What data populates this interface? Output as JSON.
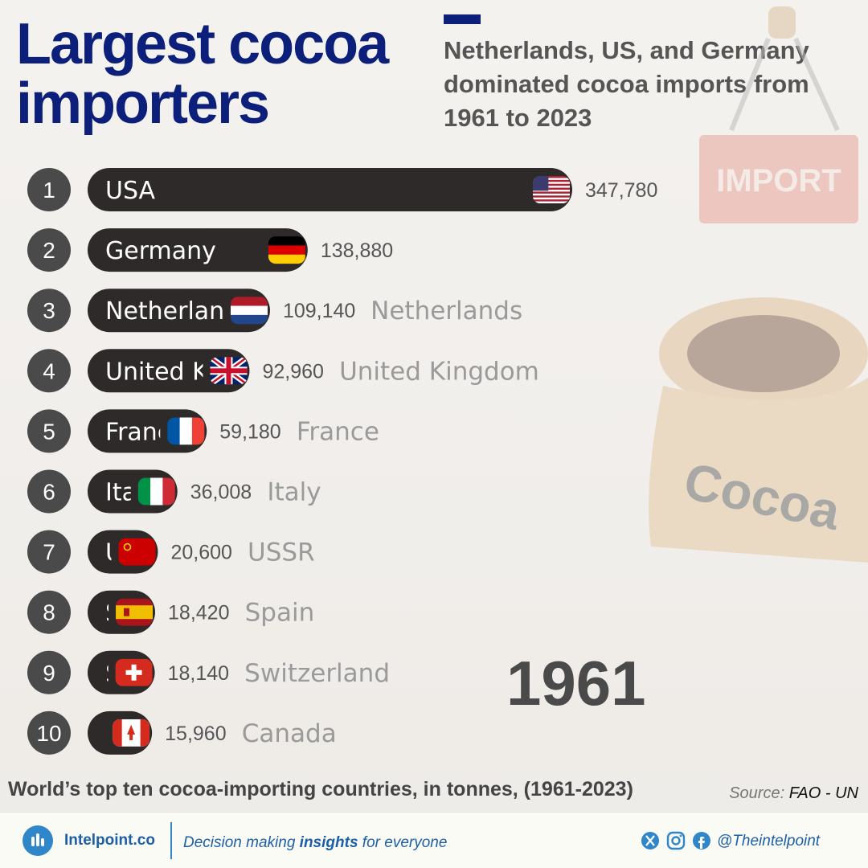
{
  "header": {
    "title": "Largest cocoa importers",
    "subtitle": "Netherlands, US, and Germany dominated cocoa imports from 1961 to 2023"
  },
  "decoration": {
    "sign_text": "IMPORT",
    "sack_text": "Cocoa"
  },
  "chart_data": {
    "type": "bar",
    "orientation": "horizontal",
    "year": "1961",
    "unit": "tonnes",
    "categories": [
      "USA",
      "Germany",
      "Netherlands",
      "United Kingdom",
      "France",
      "Italy",
      "USSR",
      "Spain",
      "Switzerland",
      "Canada"
    ],
    "ranks": [
      "1",
      "2",
      "3",
      "4",
      "5",
      "6",
      "7",
      "8",
      "9",
      "10"
    ],
    "values": [
      347780,
      138880,
      109140,
      92960,
      59180,
      36008,
      20600,
      18420,
      18140,
      15960
    ],
    "value_labels": [
      "347,780",
      "138,880",
      "109,140",
      "92,960",
      "59,180",
      "36,008",
      "20,600",
      "18,420",
      "18,140",
      "15,960"
    ],
    "xlim": [
      0,
      347780
    ],
    "flags": [
      "flag-usa-icon",
      "flag-germany-icon",
      "flag-netherlands-icon",
      "flag-uk-icon",
      "flag-france-icon",
      "flag-italy-icon",
      "flag-ussr-icon",
      "flag-spain-icon",
      "flag-switzerland-icon",
      "flag-canada-icon"
    ],
    "colors": {
      "bar": "#2e2a29",
      "rank_circle": "#4a4a4a",
      "value_text": "#555555",
      "name_outside": "#9a9a9a",
      "name_inside": "#ffffff"
    }
  },
  "footer": {
    "caption": "World’s top ten cocoa-importing countries, in tonnes, (1961-2023)",
    "source_label": "Source:",
    "source_value": "FAO - UN",
    "brand": "Intelpoint.co",
    "tagline_pre": "Decision making ",
    "tagline_bold": "insights",
    "tagline_post": " for everyone",
    "social_icons": [
      "x-icon",
      "instagram-icon",
      "facebook-icon"
    ],
    "handle": "@Theintelpoint"
  }
}
